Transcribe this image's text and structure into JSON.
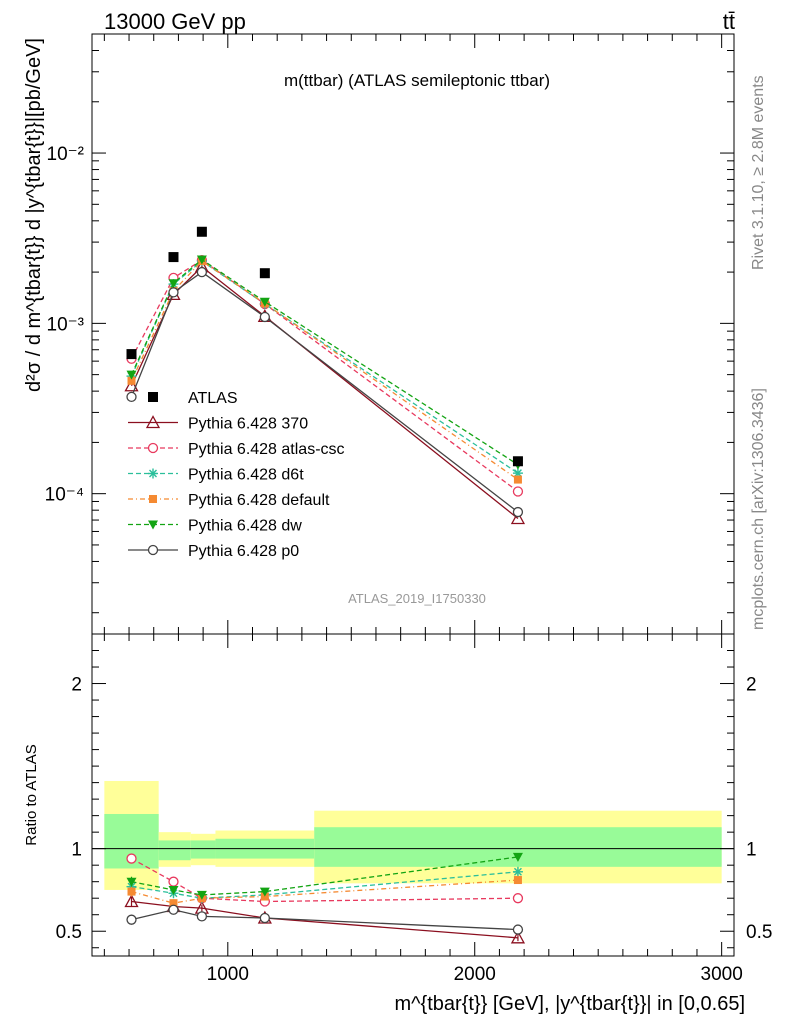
{
  "header": {
    "left": "13000 GeV pp",
    "right": "tt̄"
  },
  "side": {
    "rivet": "Rivet 3.1.10, ≥ 2.8M events",
    "mcplots": "mcplots.cern.ch [arXiv:1306.3436]"
  },
  "chart_data": [
    {
      "type": "scatter",
      "title": "m(ttbar) (ATLAS semileptonic ttbar)",
      "watermark": "ATLAS_2019_I1750330",
      "ylabel": "d²σ / d m^{tbar{t}} d |y^{tbar{t}}|[pb/GeV]",
      "yscale": "log",
      "ylim": [
        1.5e-05,
        0.05
      ],
      "xlim": [
        450,
        3050
      ],
      "y_ticklabels": [
        "10⁻²",
        "10⁻³",
        "10⁻⁴"
      ],
      "legend_position": "left",
      "data": {
        "name": "ATLAS",
        "x": [
          610,
          780,
          895,
          1150,
          2175
        ],
        "y": [
          0.00066,
          0.00245,
          0.00345,
          0.00197,
          0.000155
        ]
      },
      "series": [
        {
          "name": "Pythia 6.428 370",
          "color": "#8b0f1f",
          "dash": "",
          "marker": "tri-open",
          "y": [
            0.00043,
            0.00148,
            0.00215,
            0.0011,
            7.15e-05
          ]
        },
        {
          "name": "Pythia 6.428 atlas-csc",
          "color": "#e8395e",
          "dash": "5,3",
          "marker": "circle-open",
          "y": [
            0.00062,
            0.00185,
            0.00235,
            0.0013,
            0.000103
          ]
        },
        {
          "name": "Pythia 6.428 d6t",
          "color": "#2bbf9b",
          "dash": "5,3",
          "marker": "star",
          "y": [
            0.00049,
            0.0017,
            0.00232,
            0.0013,
            0.000132
          ]
        },
        {
          "name": "Pythia 6.428 default",
          "color": "#f58a32",
          "dash": "5,3,1,3",
          "marker": "square",
          "y": [
            0.00046,
            0.00155,
            0.00232,
            0.00131,
            0.000121
          ]
        },
        {
          "name": "Pythia 6.428 dw",
          "color": "#13a413",
          "dash": "5,3",
          "marker": "tri-down",
          "y": [
            0.0005,
            0.00172,
            0.00237,
            0.00134,
            0.000148
          ]
        },
        {
          "name": "Pythia 6.428 p0",
          "color": "#444444",
          "dash": "",
          "marker": "circle-open",
          "y": [
            0.00037,
            0.00152,
            0.002,
            0.00109,
            7.8e-05
          ]
        }
      ]
    },
    {
      "type": "scatter",
      "ylabel": "Ratio to ATLAS",
      "xlabel": "m^{tbar{t}} [GeV], |y^{tbar{t}}| in [0,0.65]",
      "xlim": [
        450,
        3050
      ],
      "ylim": [
        0.35,
        2.3
      ],
      "x_ticks": [
        1000,
        2000,
        3000
      ],
      "x_ticklabels": [
        "1000",
        "2000",
        "3000"
      ],
      "y_ticks": [
        0.5,
        1,
        2
      ],
      "y_ticklabels": [
        "0.5",
        "1",
        "2"
      ],
      "bands": {
        "edges": [
          500,
          720,
          850,
          950,
          1350,
          3000
        ],
        "yellow": [
          [
            0.75,
            1.41
          ],
          [
            0.89,
            1.1
          ],
          [
            0.9,
            1.09
          ],
          [
            0.89,
            1.11
          ],
          [
            0.79,
            1.23
          ]
        ],
        "green": [
          [
            0.88,
            1.21
          ],
          [
            0.93,
            1.05
          ],
          [
            0.94,
            1.05
          ],
          [
            0.94,
            1.06
          ],
          [
            0.89,
            1.13
          ]
        ]
      },
      "x": [
        610,
        780,
        895,
        1150,
        2175
      ],
      "series": [
        {
          "name": "Pythia 6.428 370",
          "y": [
            0.68,
            0.65,
            0.64,
            0.58,
            0.46
          ],
          "err": [
            0.03,
            0.02,
            0.02,
            0.01,
            0.02
          ]
        },
        {
          "name": "Pythia 6.428 atlas-csc",
          "y": [
            0.94,
            0.8,
            0.7,
            0.68,
            0.7
          ],
          "err": [
            0.03,
            0.02,
            0.02,
            0.01,
            0.02
          ]
        },
        {
          "name": "Pythia 6.428 d6t",
          "y": [
            0.77,
            0.73,
            0.7,
            0.72,
            0.86
          ],
          "err": [
            0.03,
            0.02,
            0.02,
            0.01,
            0.02
          ]
        },
        {
          "name": "Pythia 6.428 default",
          "y": [
            0.74,
            0.67,
            0.7,
            0.71,
            0.81
          ],
          "err": [
            0.03,
            0.02,
            0.02,
            0.01,
            0.02
          ]
        },
        {
          "name": "Pythia 6.428 dw",
          "y": [
            0.8,
            0.75,
            0.72,
            0.74,
            0.95
          ],
          "err": [
            0.03,
            0.02,
            0.02,
            0.01,
            0.02
          ]
        },
        {
          "name": "Pythia 6.428 p0",
          "y": [
            0.57,
            0.63,
            0.59,
            0.58,
            0.51
          ],
          "err": [
            0.03,
            0.02,
            0.02,
            0.01,
            0.02
          ]
        }
      ]
    }
  ]
}
